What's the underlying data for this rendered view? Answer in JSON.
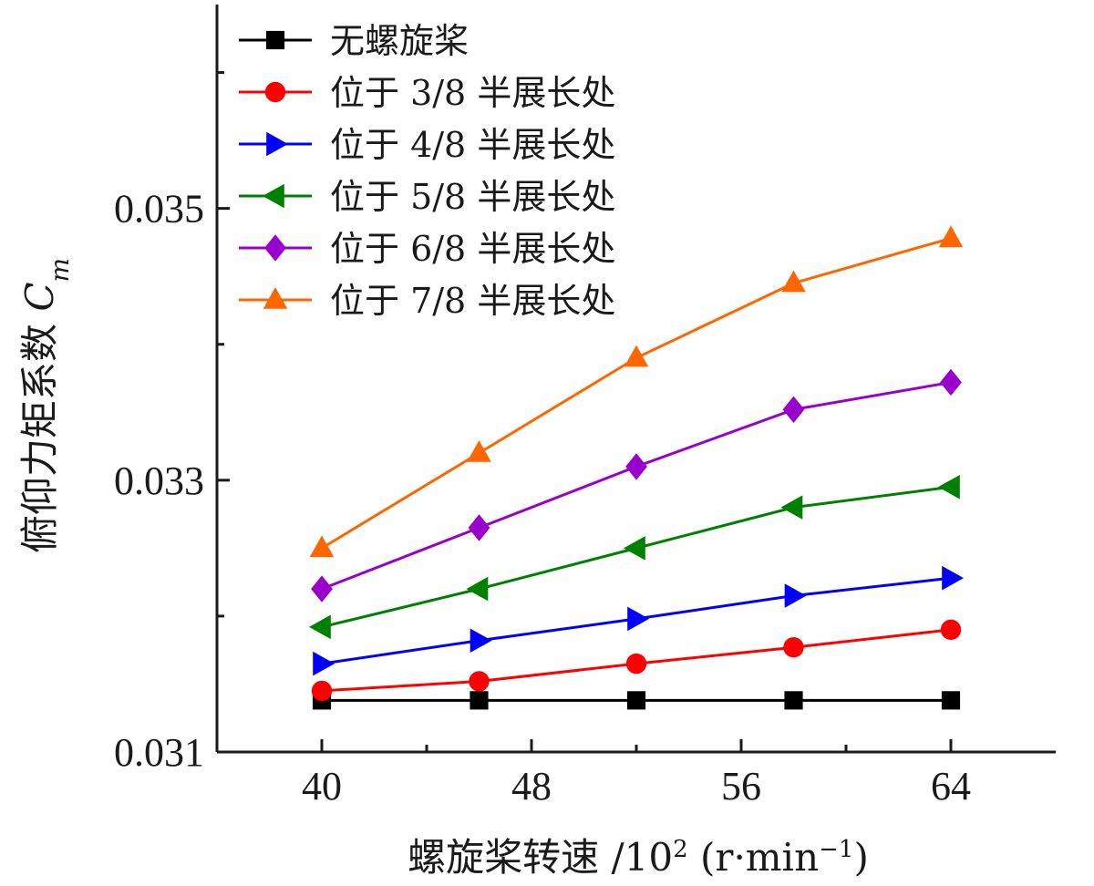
{
  "chart_data": {
    "type": "line",
    "xlabel": {
      "text": "螺旋桨转速 /10",
      "sup": "2",
      "unit_open": " (r·min",
      "unit_sup": "−1",
      "unit_close": ")"
    },
    "ylabel": {
      "text": "俯仰力矩系数 ",
      "symbol": "C",
      "subscript": "m"
    },
    "xlim": [
      36,
      68
    ],
    "ylim": [
      0.031,
      0.0365
    ],
    "xticks": [
      40,
      48,
      56,
      64
    ],
    "xtick_labels": [
      "40",
      "48",
      "56",
      "64"
    ],
    "yticks": [
      0.031,
      0.033,
      0.035
    ],
    "ytick_labels": [
      "0.031",
      "0.033",
      "0.035"
    ],
    "x": [
      40,
      46,
      52,
      58,
      64
    ],
    "legend_position": "top-left",
    "grid": false,
    "series": [
      {
        "name": "无螺旋桨",
        "color": "#000000",
        "marker": "square",
        "values": [
          0.03138,
          0.03138,
          0.03138,
          0.03138,
          0.03138
        ]
      },
      {
        "name": "位于 3/8 半展长处",
        "color": "#ff0000",
        "marker": "circle",
        "values": [
          0.03145,
          0.03152,
          0.03165,
          0.03177,
          0.0319
        ]
      },
      {
        "name": "位于 4/8 半展长处",
        "color": "#0000ff",
        "marker": "triangle-right",
        "values": [
          0.03165,
          0.03182,
          0.03198,
          0.03215,
          0.03228
        ]
      },
      {
        "name": "位于 5/8 半展长处",
        "color": "#008000",
        "marker": "triangle-left",
        "values": [
          0.03192,
          0.0322,
          0.0325,
          0.0328,
          0.03295
        ]
      },
      {
        "name": "位于 6/8 半展长处",
        "color": "#9900cc",
        "marker": "diamond",
        "values": [
          0.0322,
          0.03265,
          0.0331,
          0.03352,
          0.03372
        ]
      },
      {
        "name": "位于 7/8 半展长处",
        "color": "#ff6600",
        "marker": "triangle-up",
        "values": [
          0.0325,
          0.0332,
          0.0339,
          0.03445,
          0.03478
        ]
      }
    ]
  }
}
